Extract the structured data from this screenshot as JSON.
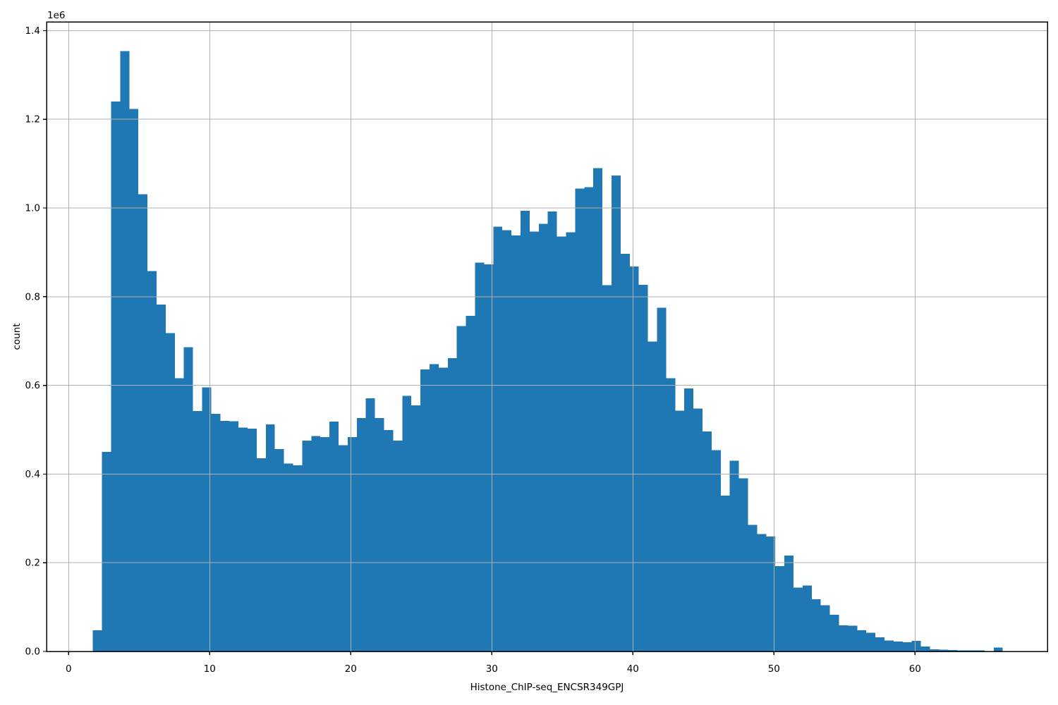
{
  "figure": {
    "xlabel": "Histone_ChIP-seq_ENCSR349GPJ",
    "ylabel": "count",
    "offset_text": "1e6",
    "background_color": "#ffffff",
    "bar_color": "#1f77b4",
    "grid_color": "#b0b0b0",
    "spine_color": "#000000"
  },
  "chart_data": {
    "type": "bar",
    "subtype": "histogram",
    "title": "",
    "xlabel": "Histone_ChIP-seq_ENCSR349GPJ",
    "ylabel": "count",
    "y_offset_multiplier": "1e6",
    "bin_start": 1.72,
    "bin_width": 0.645,
    "n_bins": 100,
    "values": [
      48000,
      450000,
      1240000,
      1354000,
      1223000,
      1031000,
      858000,
      782000,
      718000,
      616000,
      686000,
      542000,
      595000,
      536000,
      520000,
      519000,
      505000,
      502000,
      436000,
      512000,
      456000,
      424000,
      420000,
      475000,
      486000,
      483000,
      518000,
      465000,
      483000,
      526000,
      571000,
      526000,
      499000,
      475000,
      576000,
      555000,
      636000,
      648000,
      640000,
      661000,
      734000,
      757000,
      877000,
      873000,
      958000,
      950000,
      938000,
      994000,
      947000,
      964000,
      992000,
      936000,
      945000,
      1044000,
      1047000,
      1090000,
      826000,
      1073000,
      897000,
      868000,
      827000,
      699000,
      775000,
      616000,
      543000,
      593000,
      548000,
      496000,
      454000,
      351000,
      430000,
      390000,
      285000,
      265000,
      259000,
      192000,
      216000,
      144000,
      149000,
      118000,
      104000,
      83000,
      59000,
      58000,
      48000,
      42000,
      32000,
      25000,
      22000,
      21000,
      24000,
      11000,
      5000,
      4000,
      3000,
      2000,
      2000,
      2000,
      0,
      9000
    ],
    "xlim": [
      -1.565,
      69.385
    ],
    "ylim": [
      0,
      1419700
    ],
    "xtick_values": [
      0,
      10,
      20,
      30,
      40,
      50,
      60
    ],
    "xtick_labels": [
      "0",
      "10",
      "20",
      "30",
      "40",
      "50",
      "60"
    ],
    "ytick_values": [
      0,
      200000,
      400000,
      600000,
      800000,
      1000000,
      1200000,
      1400000
    ],
    "ytick_labels": [
      "0.0",
      "0.2",
      "0.4",
      "0.6",
      "0.8",
      "1.0",
      "1.2",
      "1.4"
    ],
    "grid": true,
    "grid_on_top_of_bars": true,
    "legend": null
  }
}
